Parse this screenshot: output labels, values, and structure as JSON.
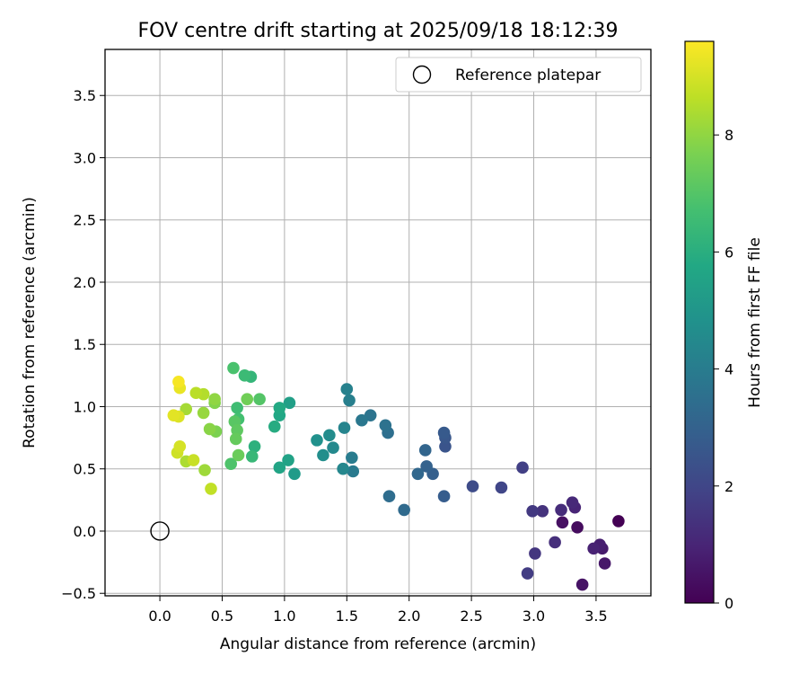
{
  "chart_data": {
    "type": "scatter",
    "title": "FOV centre drift starting at 2025/09/18 18:12:39",
    "xlabel": "Angular distance from reference (arcmin)",
    "ylabel": "Rotation from reference (arcmin)",
    "xlim": [
      -0.44,
      3.94
    ],
    "ylim": [
      -0.52,
      3.87
    ],
    "xticks": [
      "0.0",
      "0.5",
      "1.0",
      "1.5",
      "2.0",
      "2.5",
      "3.0",
      "3.5"
    ],
    "yticks": [
      "−0.5",
      "0.0",
      "0.5",
      "1.0",
      "1.5",
      "2.0",
      "2.5",
      "3.0",
      "3.5"
    ],
    "grid": true,
    "legend": {
      "label": "Reference platepar",
      "position": "top-right"
    },
    "reference_point": {
      "x": 0.0,
      "y": 0.0
    },
    "colorbar": {
      "label": "Hours from first FF file",
      "colormap": "viridis",
      "range": [
        0,
        9.6
      ],
      "ticks": [
        "0",
        "2",
        "4",
        "6",
        "8"
      ]
    },
    "series": [
      {
        "points": [
          {
            "x": 3.68,
            "y": 0.08,
            "c": 0.0
          },
          {
            "x": 3.35,
            "y": 0.03,
            "c": 0.3
          },
          {
            "x": 3.23,
            "y": 0.07,
            "c": 0.4
          },
          {
            "x": 3.39,
            "y": -0.43,
            "c": 0.5
          },
          {
            "x": 3.57,
            "y": -0.26,
            "c": 0.6
          },
          {
            "x": 3.55,
            "y": -0.14,
            "c": 0.7
          },
          {
            "x": 3.53,
            "y": -0.11,
            "c": 0.8
          },
          {
            "x": 3.48,
            "y": -0.14,
            "c": 0.9
          },
          {
            "x": 3.33,
            "y": 0.19,
            "c": 1.0
          },
          {
            "x": 3.31,
            "y": 0.23,
            "c": 1.1
          },
          {
            "x": 3.22,
            "y": 0.17,
            "c": 1.2
          },
          {
            "x": 3.17,
            "y": -0.09,
            "c": 1.3
          },
          {
            "x": 3.07,
            "y": 0.16,
            "c": 1.4
          },
          {
            "x": 3.01,
            "y": -0.18,
            "c": 1.5
          },
          {
            "x": 2.99,
            "y": 0.16,
            "c": 1.6
          },
          {
            "x": 2.95,
            "y": -0.34,
            "c": 1.7
          },
          {
            "x": 2.91,
            "y": 0.51,
            "c": 1.8
          },
          {
            "x": 2.74,
            "y": 0.35,
            "c": 2.0
          },
          {
            "x": 2.51,
            "y": 0.36,
            "c": 2.2
          },
          {
            "x": 2.29,
            "y": 0.68,
            "c": 2.5
          },
          {
            "x": 2.29,
            "y": 0.75,
            "c": 2.6
          },
          {
            "x": 2.28,
            "y": 0.79,
            "c": 2.7
          },
          {
            "x": 2.28,
            "y": 0.28,
            "c": 2.8
          },
          {
            "x": 2.19,
            "y": 0.46,
            "c": 2.9
          },
          {
            "x": 2.14,
            "y": 0.52,
            "c": 3.0
          },
          {
            "x": 2.13,
            "y": 0.65,
            "c": 3.1
          },
          {
            "x": 2.07,
            "y": 0.46,
            "c": 3.2
          },
          {
            "x": 1.96,
            "y": 0.17,
            "c": 3.3
          },
          {
            "x": 1.84,
            "y": 0.28,
            "c": 3.4
          },
          {
            "x": 1.83,
            "y": 0.79,
            "c": 3.5
          },
          {
            "x": 1.81,
            "y": 0.85,
            "c": 3.6
          },
          {
            "x": 1.69,
            "y": 0.93,
            "c": 3.7
          },
          {
            "x": 1.62,
            "y": 0.89,
            "c": 3.8
          },
          {
            "x": 1.55,
            "y": 0.48,
            "c": 3.9
          },
          {
            "x": 1.54,
            "y": 0.59,
            "c": 4.0
          },
          {
            "x": 1.52,
            "y": 1.05,
            "c": 4.1
          },
          {
            "x": 1.5,
            "y": 1.14,
            "c": 4.2
          },
          {
            "x": 1.48,
            "y": 0.83,
            "c": 4.3
          },
          {
            "x": 1.47,
            "y": 0.5,
            "c": 4.4
          },
          {
            "x": 1.39,
            "y": 0.67,
            "c": 4.5
          },
          {
            "x": 1.36,
            "y": 0.77,
            "c": 4.6
          },
          {
            "x": 1.31,
            "y": 0.61,
            "c": 4.7
          },
          {
            "x": 1.26,
            "y": 0.73,
            "c": 4.8
          },
          {
            "x": 1.08,
            "y": 0.46,
            "c": 5.2
          },
          {
            "x": 1.04,
            "y": 1.03,
            "c": 5.4
          },
          {
            "x": 1.03,
            "y": 0.57,
            "c": 5.5
          },
          {
            "x": 0.96,
            "y": 0.51,
            "c": 5.6
          },
          {
            "x": 0.96,
            "y": 0.93,
            "c": 5.7
          },
          {
            "x": 0.96,
            "y": 0.99,
            "c": 5.8
          },
          {
            "x": 0.92,
            "y": 0.84,
            "c": 5.9
          },
          {
            "x": 0.76,
            "y": 0.68,
            "c": 6.1
          },
          {
            "x": 0.73,
            "y": 1.24,
            "c": 6.3
          },
          {
            "x": 0.74,
            "y": 0.6,
            "c": 6.4
          },
          {
            "x": 0.68,
            "y": 1.25,
            "c": 6.5
          },
          {
            "x": 0.62,
            "y": 0.99,
            "c": 6.6
          },
          {
            "x": 0.63,
            "y": 0.9,
            "c": 6.7
          },
          {
            "x": 0.59,
            "y": 1.31,
            "c": 6.8
          },
          {
            "x": 0.57,
            "y": 0.54,
            "c": 6.9
          },
          {
            "x": 0.8,
            "y": 1.06,
            "c": 7.0
          },
          {
            "x": 0.6,
            "y": 0.88,
            "c": 7.1
          },
          {
            "x": 0.62,
            "y": 0.81,
            "c": 7.2
          },
          {
            "x": 0.61,
            "y": 0.74,
            "c": 7.3
          },
          {
            "x": 0.63,
            "y": 0.61,
            "c": 7.4
          },
          {
            "x": 0.7,
            "y": 1.06,
            "c": 7.5
          },
          {
            "x": 0.45,
            "y": 0.8,
            "c": 7.7
          },
          {
            "x": 0.44,
            "y": 1.03,
            "c": 7.8
          },
          {
            "x": 0.4,
            "y": 0.82,
            "c": 7.9
          },
          {
            "x": 0.44,
            "y": 1.06,
            "c": 8.0
          },
          {
            "x": 0.35,
            "y": 0.95,
            "c": 8.1
          },
          {
            "x": 0.36,
            "y": 0.49,
            "c": 8.2
          },
          {
            "x": 0.21,
            "y": 0.98,
            "c": 8.3
          },
          {
            "x": 0.21,
            "y": 0.56,
            "c": 8.4
          },
          {
            "x": 0.35,
            "y": 1.1,
            "c": 8.5
          },
          {
            "x": 0.29,
            "y": 1.11,
            "c": 8.6
          },
          {
            "x": 0.41,
            "y": 0.34,
            "c": 8.7
          },
          {
            "x": 0.27,
            "y": 0.57,
            "c": 8.8
          },
          {
            "x": 0.14,
            "y": 0.63,
            "c": 8.9
          },
          {
            "x": 0.16,
            "y": 0.68,
            "c": 9.0
          },
          {
            "x": 0.15,
            "y": 0.92,
            "c": 9.1
          },
          {
            "x": 0.11,
            "y": 0.93,
            "c": 9.2
          },
          {
            "x": 0.16,
            "y": 1.15,
            "c": 9.3
          },
          {
            "x": 0.15,
            "y": 1.2,
            "c": 9.5
          }
        ]
      }
    ]
  }
}
